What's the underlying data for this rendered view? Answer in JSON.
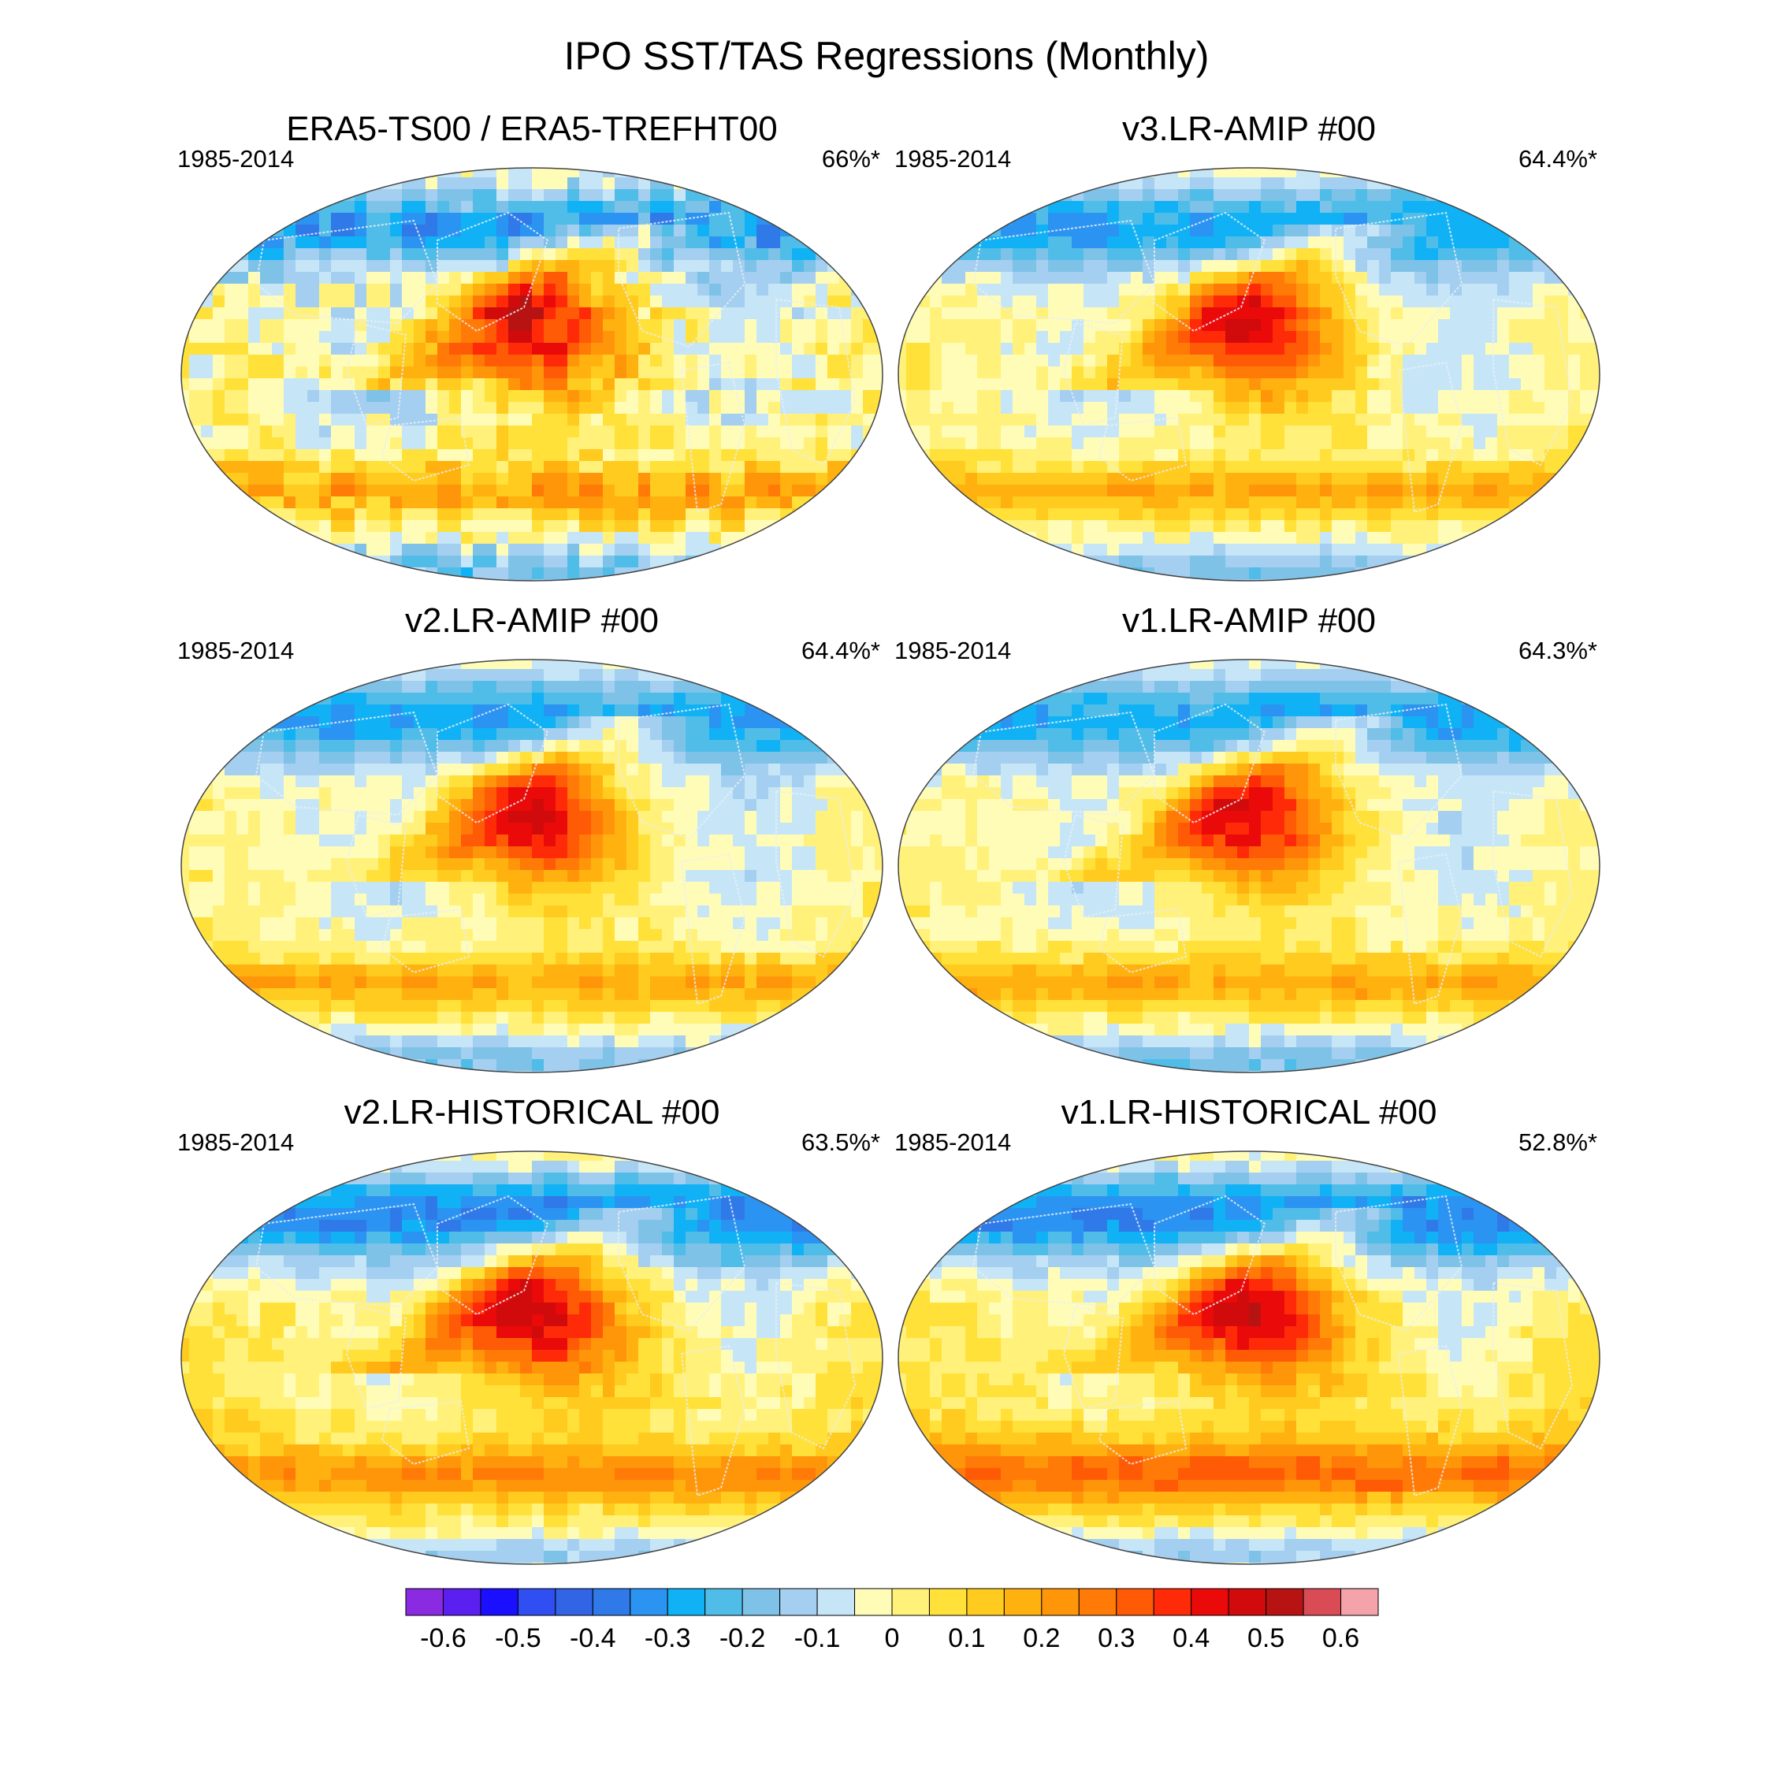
{
  "figure": {
    "title": "IPO SST/TAS Regressions (Monthly)"
  },
  "panels": [
    {
      "title": "ERA5-TS00 / ERA5-TREFHT00",
      "period": "1985-2014",
      "percent": "66%*"
    },
    {
      "title": "v3.LR-AMIP  #00",
      "period": "1985-2014",
      "percent": "64.4%*"
    },
    {
      "title": "v2.LR-AMIP  #00",
      "period": "1985-2014",
      "percent": "64.4%*"
    },
    {
      "title": "v1.LR-AMIP  #00",
      "period": "1985-2014",
      "percent": "64.3%*"
    },
    {
      "title": "v2.LR-HISTORICAL  #00",
      "period": "1985-2014",
      "percent": "63.5%*"
    },
    {
      "title": "v1.LR-HISTORICAL  #00",
      "period": "1985-2014",
      "percent": "52.8%*"
    }
  ],
  "colorbar": {
    "colors": [
      "#8a2be2",
      "#5b1ff0",
      "#1a0fff",
      "#2f4ff2",
      "#3264e6",
      "#2f7ae8",
      "#2b93f2",
      "#10b2f5",
      "#50bde8",
      "#7ec2e8",
      "#a4cff0",
      "#c6e6f7",
      "#fffcb8",
      "#fff17a",
      "#ffe13a",
      "#ffcb1f",
      "#ffb10f",
      "#ff960a",
      "#ff7a06",
      "#ff5a05",
      "#ff2a08",
      "#ea0a0a",
      "#d10b0b",
      "#b81313",
      "#d94c55",
      "#f5a3ab"
    ],
    "tick_labels": [
      "-0.6",
      "-0.5",
      "-0.4",
      "-0.3",
      "-0.2",
      "-0.1",
      "0",
      "0.1",
      "0.2",
      "0.3",
      "0.4",
      "0.5",
      "0.6"
    ]
  }
}
